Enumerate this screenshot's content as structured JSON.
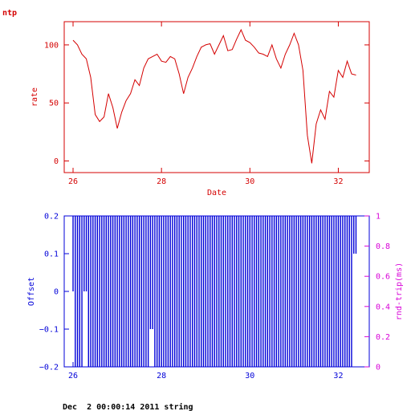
{
  "colors": {
    "top": "#d40000",
    "offset": "#0000d8",
    "roundtrip": "#d800d8",
    "footer": "#000000"
  },
  "page": {
    "corner_label": "ntp",
    "footer": "Dec  2 00:00:14 2011 string"
  },
  "chart_data": [
    {
      "type": "line",
      "title": "",
      "xlabel": "Date",
      "ylabel": "rate",
      "xlim": [
        25.8,
        32.7
      ],
      "ylim": [
        -10,
        120
      ],
      "x_ticks": [
        26,
        28,
        30,
        32
      ],
      "y_ticks": [
        0,
        50,
        100
      ],
      "x": [
        26.0,
        26.1,
        26.2,
        26.3,
        26.4,
        26.5,
        26.6,
        26.7,
        26.8,
        26.9,
        27.0,
        27.1,
        27.2,
        27.3,
        27.4,
        27.5,
        27.6,
        27.7,
        27.8,
        27.9,
        28.0,
        28.1,
        28.2,
        28.3,
        28.4,
        28.5,
        28.6,
        28.7,
        28.8,
        28.9,
        29.0,
        29.1,
        29.2,
        29.3,
        29.4,
        29.5,
        29.6,
        29.7,
        29.8,
        29.9,
        30.0,
        30.1,
        30.2,
        30.3,
        30.4,
        30.5,
        30.6,
        30.7,
        30.8,
        30.9,
        31.0,
        31.1,
        31.2,
        31.3,
        31.4,
        31.5,
        31.6,
        31.7,
        31.8,
        31.9,
        32.0,
        32.1,
        32.2,
        32.3,
        32.4
      ],
      "series": [
        {
          "values": [
            104,
            100,
            92,
            88,
            72,
            40,
            34,
            38,
            58,
            46,
            28,
            42,
            52,
            58,
            70,
            65,
            80,
            88,
            90,
            92,
            86,
            85,
            90,
            88,
            75,
            58,
            72,
            80,
            90,
            98,
            100,
            101,
            92,
            100,
            108,
            95,
            96,
            105,
            113,
            104,
            102,
            98,
            93,
            92,
            90,
            100,
            88,
            80,
            92,
            100,
            110,
            100,
            78,
            22,
            -2,
            32,
            44,
            36,
            60,
            55,
            78,
            72,
            86,
            75,
            74
          ]
        }
      ]
    },
    {
      "type": "bar",
      "title": "",
      "xlabel": "",
      "ylabel": "Offset",
      "y2label": "rnd-trip(ms)",
      "xlim": [
        25.8,
        32.7
      ],
      "ylim": [
        -0.2,
        0.2
      ],
      "y2lim": [
        0,
        1
      ],
      "x_ticks": [
        26,
        28,
        30,
        32
      ],
      "y_ticks": [
        -0.2,
        -0.1,
        0,
        0.1,
        0.2
      ],
      "y2_ticks": [
        0,
        0.2,
        0.4,
        0.6,
        0.8,
        1
      ],
      "x": [
        26.0,
        26.05,
        26.1,
        26.15,
        26.2,
        26.25,
        26.3,
        26.35,
        26.4,
        26.45,
        26.5,
        26.55,
        26.6,
        26.65,
        26.7,
        26.75,
        26.8,
        26.85,
        26.9,
        26.95,
        27.0,
        27.05,
        27.1,
        27.15,
        27.2,
        27.25,
        27.3,
        27.35,
        27.4,
        27.45,
        27.5,
        27.55,
        27.6,
        27.65,
        27.7,
        27.75,
        27.8,
        27.85,
        27.9,
        27.95,
        28.0,
        28.05,
        28.1,
        28.15,
        28.2,
        28.25,
        28.3,
        28.35,
        28.4,
        28.45,
        28.5,
        28.55,
        28.6,
        28.65,
        28.7,
        28.75,
        28.8,
        28.85,
        28.9,
        28.95,
        29.0,
        29.05,
        29.1,
        29.15,
        29.2,
        29.25,
        29.3,
        29.35,
        29.4,
        29.45,
        29.5,
        29.55,
        29.6,
        29.65,
        29.7,
        29.75,
        29.8,
        29.85,
        29.9,
        29.95,
        30.0,
        30.05,
        30.1,
        30.15,
        30.2,
        30.25,
        30.3,
        30.35,
        30.4,
        30.45,
        30.5,
        30.55,
        30.6,
        30.65,
        30.7,
        30.75,
        30.8,
        30.85,
        30.9,
        30.95,
        31.0,
        31.05,
        31.1,
        31.15,
        31.2,
        31.25,
        31.3,
        31.35,
        31.4,
        31.45,
        31.5,
        31.55,
        31.6,
        31.65,
        31.7,
        31.75,
        31.8,
        31.85,
        31.9,
        31.95,
        32.0,
        32.05,
        32.1,
        32.15,
        32.2,
        32.25,
        32.3,
        32.35,
        32.4
      ],
      "series": [
        {
          "values": [
            0.2,
            -0.2,
            0.2,
            -0.2,
            0.2,
            0.0,
            0.2,
            -0.2,
            0.2,
            -0.2,
            0.2,
            -0.2,
            0.2,
            -0.2,
            0.2,
            -0.2,
            0.2,
            -0.2,
            0.2,
            -0.2,
            0.2,
            -0.2,
            0.2,
            -0.2,
            0.2,
            -0.2,
            0.2,
            -0.2,
            0.2,
            -0.2,
            0.2,
            -0.2,
            0.2,
            -0.2,
            0.2,
            -0.1,
            0.2,
            -0.2,
            0.2,
            -0.2,
            0.2,
            -0.2,
            0.2,
            -0.2,
            0.2,
            -0.2,
            0.2,
            -0.2,
            0.2,
            -0.2,
            0.2,
            -0.2,
            0.2,
            -0.2,
            0.2,
            -0.2,
            0.2,
            -0.2,
            0.2,
            -0.2,
            0.2,
            -0.2,
            0.2,
            -0.2,
            0.2,
            -0.2,
            0.2,
            -0.2,
            0.2,
            -0.2,
            0.2,
            -0.2,
            0.2,
            -0.2,
            0.2,
            -0.2,
            0.2,
            -0.2,
            0.2,
            -0.2,
            0.2,
            -0.2,
            0.2,
            -0.2,
            0.2,
            -0.2,
            0.2,
            -0.2,
            0.2,
            -0.2,
            0.2,
            -0.2,
            0.2,
            -0.2,
            0.2,
            -0.2,
            0.2,
            -0.2,
            0.2,
            -0.2,
            0.2,
            -0.2,
            0.2,
            -0.2,
            0.2,
            -0.2,
            0.2,
            -0.2,
            0.2,
            -0.2,
            0.2,
            -0.2,
            0.2,
            -0.2,
            0.2,
            -0.2,
            0.2,
            -0.2,
            0.2,
            -0.2,
            0.2,
            -0.2,
            0.2,
            -0.2,
            0.2,
            -0.2,
            0.2,
            0.1,
            0.2
          ]
        }
      ]
    }
  ]
}
